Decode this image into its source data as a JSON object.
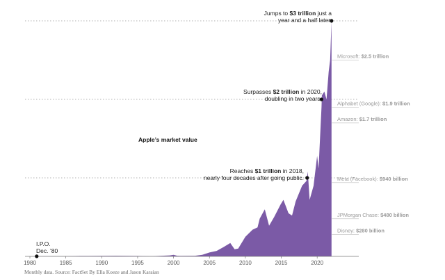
{
  "chart_data": {
    "type": "area",
    "title": "Apple’s market value",
    "unit": "trillion",
    "xlim": [
      1980,
      2022.5
    ],
    "ylim": [
      0,
      3.0
    ],
    "x_ticks": [
      "1980",
      "1985",
      "1990",
      "1995",
      "2000",
      "2005",
      "2010",
      "2015",
      "2020"
    ],
    "color": "#7b5aa6",
    "series": [
      {
        "points": [
          [
            1980.9,
            0.001
          ],
          [
            1983,
            0.003
          ],
          [
            1985,
            0.002
          ],
          [
            1987,
            0.005
          ],
          [
            1990,
            0.006
          ],
          [
            1992,
            0.008
          ],
          [
            1995,
            0.005
          ],
          [
            1997,
            0.003
          ],
          [
            1999.5,
            0.012
          ],
          [
            2000.0,
            0.02
          ],
          [
            2000.5,
            0.008
          ],
          [
            2001,
            0.007
          ],
          [
            2003,
            0.008
          ],
          [
            2004,
            0.02
          ],
          [
            2005,
            0.05
          ],
          [
            2006,
            0.07
          ],
          [
            2007,
            0.12
          ],
          [
            2007.9,
            0.17
          ],
          [
            2008.5,
            0.09
          ],
          [
            2009,
            0.1
          ],
          [
            2010,
            0.25
          ],
          [
            2011,
            0.34
          ],
          [
            2011.7,
            0.37
          ],
          [
            2012.0,
            0.48
          ],
          [
            2012.7,
            0.6
          ],
          [
            2013.3,
            0.39
          ],
          [
            2014,
            0.5
          ],
          [
            2014.9,
            0.66
          ],
          [
            2015.3,
            0.72
          ],
          [
            2016,
            0.55
          ],
          [
            2016.5,
            0.52
          ],
          [
            2017,
            0.7
          ],
          [
            2017.9,
            0.9
          ],
          [
            2018.5,
            0.96
          ],
          [
            2018.7,
            1.08
          ],
          [
            2018.95,
            0.72
          ],
          [
            2019.5,
            0.9
          ],
          [
            2019.99,
            1.28
          ],
          [
            2020.2,
            1.12
          ],
          [
            2020.6,
            1.9
          ],
          [
            2020.65,
            2.05
          ],
          [
            2021.0,
            2.1
          ],
          [
            2021.3,
            2.0
          ],
          [
            2021.6,
            2.35
          ],
          [
            2021.8,
            2.5
          ],
          [
            2022.0,
            3.0
          ]
        ]
      }
    ],
    "annotations": [
      {
        "x": 1980.95,
        "y": 0.001,
        "text": [
          "I.P.O.",
          "Dec. ’80"
        ]
      },
      {
        "x": 2018.6,
        "y": 1.0,
        "lines": [
          [
            [
              "Reaches ",
              false
            ],
            [
              "$1 trillion",
              true
            ],
            [
              " in 2018,",
              false
            ]
          ],
          [
            [
              "nearly four decades after going public.",
              false
            ]
          ]
        ]
      },
      {
        "x": 2020.6,
        "y": 2.0,
        "lines": [
          [
            [
              "Surpasses ",
              false
            ],
            [
              "$2 trillion",
              true
            ],
            [
              " in 2020,",
              false
            ]
          ],
          [
            [
              "doubling in two years.",
              false
            ]
          ]
        ]
      },
      {
        "x": 2022.0,
        "y": 3.0,
        "lines": [
          [
            [
              "Jumps to ",
              false
            ],
            [
              "$3 trillion",
              true
            ],
            [
              " just a",
              false
            ]
          ],
          [
            [
              "year and a half later.",
              false
            ]
          ]
        ]
      }
    ],
    "comparisons": [
      {
        "name": "Microsoft:",
        "value_label": "$2.5 trillion",
        "value": 2.5
      },
      {
        "name": "Alphabet (Google):",
        "value_label": "$1.9 trillion",
        "value": 1.9
      },
      {
        "name": "Amazon:",
        "value_label": "$1.7 trillion",
        "value": 1.7
      },
      {
        "name": "Meta (Facebook):",
        "value_label": "$940 billion",
        "value": 0.94
      },
      {
        "name": "JPMorgan Chase:",
        "value_label": "$480 billion",
        "value": 0.48
      },
      {
        "name": "Disney:",
        "value_label": "$280 billion",
        "value": 0.28
      }
    ]
  },
  "footer": {
    "label": "Monthly data.  Source: FactSet  By Ella Koeze and Jason Karaian"
  }
}
